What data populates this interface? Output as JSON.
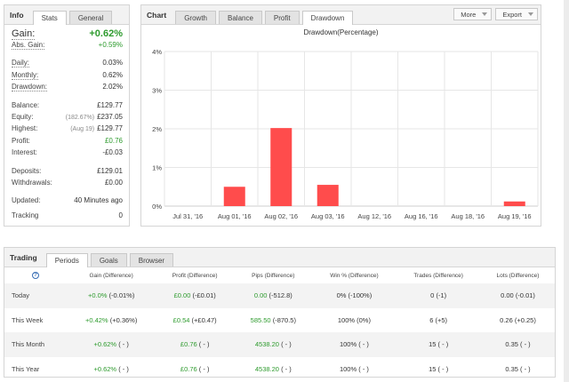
{
  "info": {
    "title": "Info",
    "tabs": [
      "Stats",
      "General"
    ],
    "gain": {
      "label": "Gain:",
      "value": "+0.62%"
    },
    "abs_gain": {
      "label": "Abs. Gain:",
      "value": "+0.59%"
    },
    "daily": {
      "label": "Daily:",
      "value": "0.03%"
    },
    "monthly": {
      "label": "Monthly:",
      "value": "0.62%"
    },
    "drawdown": {
      "label": "Drawdown:",
      "value": "2.02%"
    },
    "balance": {
      "label": "Balance:",
      "value": "£129.77"
    },
    "equity": {
      "label": "Equity:",
      "pre": "(182.67%)",
      "value": "£237.05"
    },
    "highest": {
      "label": "Highest:",
      "pre": "(Aug 19)",
      "value": "£129.77"
    },
    "profit": {
      "label": "Profit:",
      "value": "£0.76"
    },
    "interest": {
      "label": "Interest:",
      "value": "-£0.03"
    },
    "deposits": {
      "label": "Deposits:",
      "value": "£129.01"
    },
    "withdrawals": {
      "label": "Withdrawals:",
      "value": "£0.00"
    },
    "updated": {
      "label": "Updated:",
      "value": "40 Minutes ago"
    },
    "tracking": {
      "label": "Tracking",
      "value": "0"
    }
  },
  "chart_panel": {
    "title": "Chart",
    "tabs": [
      "Growth",
      "Balance",
      "Profit",
      "Drawdown"
    ],
    "active_tab": "Drawdown",
    "more_label": "More",
    "export_label": "Export"
  },
  "chart_data": {
    "type": "bar",
    "title": "Drawdown(Percentage)",
    "categories": [
      "Jul 31, '16",
      "Aug 01, '16",
      "Aug 02, '16",
      "Aug 03, '16",
      "Aug 12, '16",
      "Aug 16, '16",
      "Aug 18, '16",
      "Aug 19, '16"
    ],
    "values": [
      0,
      0.5,
      2.02,
      0.55,
      0,
      0,
      0,
      0.12
    ],
    "yticks": [
      "0%",
      "1%",
      "2%",
      "3%",
      "4%"
    ],
    "ylim": [
      0,
      4
    ],
    "grid": true,
    "bar_color": "#ff4c4c"
  },
  "trading": {
    "title": "Trading",
    "tabs": [
      "Periods",
      "Goals",
      "Browser"
    ],
    "columns": [
      "Gain (Difference)",
      "Profit (Difference)",
      "Pips (Difference)",
      "Win % (Difference)",
      "Trades (Difference)",
      "Lots (Difference)"
    ],
    "rows": [
      {
        "period": "Today",
        "gain": "+0.0%",
        "gain_d": "(-0.01%)",
        "profit": "£0.00",
        "profit_d": "(-£0.01)",
        "pips": "0.00",
        "pips_d": "(-512.8)",
        "win": "0%",
        "win_d": "(-100%)",
        "trades": "0",
        "trades_d": "(-1)",
        "lots": "0.00",
        "lots_d": "(-0.01)"
      },
      {
        "period": "This Week",
        "gain": "+0.42%",
        "gain_d": "(+0.36%)",
        "profit": "£0.54",
        "profit_d": "(+£0.47)",
        "pips": "585.50",
        "pips_d": "(-870.5)",
        "win": "100%",
        "win_d": "(0%)",
        "trades": "6",
        "trades_d": "(+5)",
        "lots": "0.26",
        "lots_d": "(+0.25)"
      },
      {
        "period": "This Month",
        "gain": "+0.62%",
        "gain_d": "( - )",
        "profit": "£0.76",
        "profit_d": "( - )",
        "pips": "4538.20",
        "pips_d": "( - )",
        "win": "100%",
        "win_d": "( - )",
        "trades": "15",
        "trades_d": "( - )",
        "lots": "0.35",
        "lots_d": "( - )"
      },
      {
        "period": "This Year",
        "gain": "+0.62%",
        "gain_d": "( - )",
        "profit": "£0.76",
        "profit_d": "( - )",
        "pips": "4538.20",
        "pips_d": "( - )",
        "win": "100%",
        "win_d": "( - )",
        "trades": "15",
        "trades_d": "( - )",
        "lots": "0.35",
        "lots_d": "( - )"
      }
    ]
  }
}
